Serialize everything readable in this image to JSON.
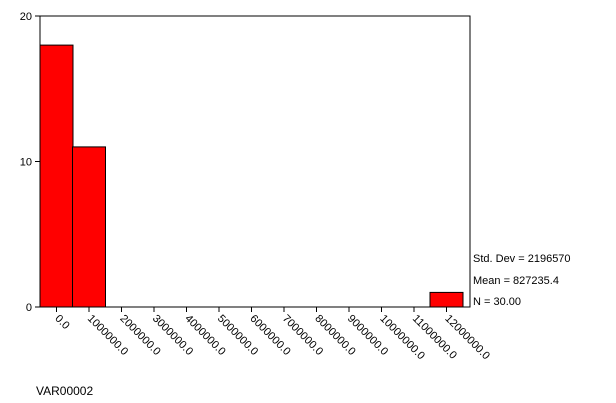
{
  "chart_data": {
    "type": "bar",
    "subtype": "histogram",
    "title": "",
    "xlabel": "VAR00002",
    "ylabel": "",
    "bin_width": 1000000,
    "bin_centers": [
      0,
      1000000,
      2000000,
      3000000,
      4000000,
      5000000,
      6000000,
      7000000,
      8000000,
      9000000,
      10000000,
      11000000,
      12000000
    ],
    "x_tick_labels": [
      "0.0",
      "1000000.0",
      "2000000.0",
      "3000000.0",
      "4000000.0",
      "5000000.0",
      "6000000.0",
      "7000000.0",
      "8000000.0",
      "9000000.0",
      "10000000.0",
      "11000000.0",
      "12000000.0"
    ],
    "values": [
      18,
      11,
      0,
      0,
      0,
      0,
      0,
      0,
      0,
      0,
      0,
      0,
      1
    ],
    "y_ticks": [
      0,
      10,
      20
    ],
    "ylim": [
      0,
      20
    ],
    "grid": false,
    "bar_color": "#ff0000",
    "stats": {
      "std_dev": "Std. Dev = 2196570",
      "mean": "Mean = 827235.4",
      "n": "N = 30.00"
    }
  }
}
